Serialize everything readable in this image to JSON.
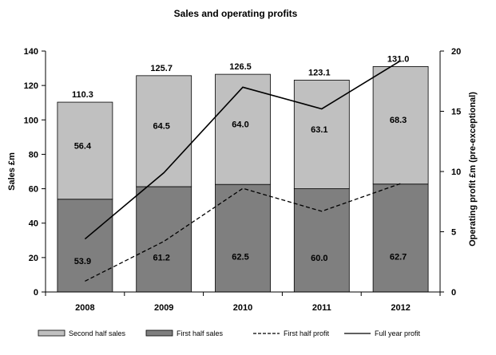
{
  "chart_data": {
    "type": "bar",
    "stacked": true,
    "title": "Sales and operating profits",
    "categories": [
      "2008",
      "2009",
      "2010",
      "2011",
      "2012"
    ],
    "ylabel": "Sales £m",
    "y2label": "Operating profit £m (pre-exceptional)",
    "ylim": [
      0,
      140
    ],
    "yticks": [
      0,
      20,
      40,
      60,
      80,
      100,
      120,
      140
    ],
    "y2lim": [
      0,
      20
    ],
    "y2ticks": [
      0,
      5,
      10,
      15,
      20
    ],
    "totals": [
      "110.3",
      "125.7",
      "126.5",
      "123.1",
      "131.0"
    ],
    "series": [
      {
        "name": "First half sales",
        "type": "bar",
        "values": [
          53.9,
          61.2,
          62.5,
          60.0,
          62.7
        ],
        "labels": [
          "53.9",
          "61.2",
          "62.5",
          "60.0",
          "62.7"
        ],
        "color": "#7f7f7f"
      },
      {
        "name": "Second half sales",
        "type": "bar",
        "values": [
          56.4,
          64.5,
          64.0,
          63.1,
          68.3
        ],
        "labels": [
          "56.4",
          "64.5",
          "64.0",
          "63.1",
          "68.3"
        ],
        "color": "#c0c0c0"
      },
      {
        "name": "First half profit",
        "type": "line",
        "axis": "right",
        "style": "dashed",
        "values": [
          0.9,
          4.2,
          8.6,
          6.7,
          9.0
        ],
        "color": "#000000"
      },
      {
        "name": "Full year profit",
        "type": "line",
        "axis": "right",
        "style": "solid",
        "values": [
          4.4,
          9.9,
          17.0,
          15.2,
          19.2
        ],
        "color": "#000000"
      }
    ],
    "legend_order": [
      "Second half sales",
      "First half sales",
      "First half profit",
      "Full year profit"
    ],
    "legend_position": "bottom",
    "grid": false
  }
}
